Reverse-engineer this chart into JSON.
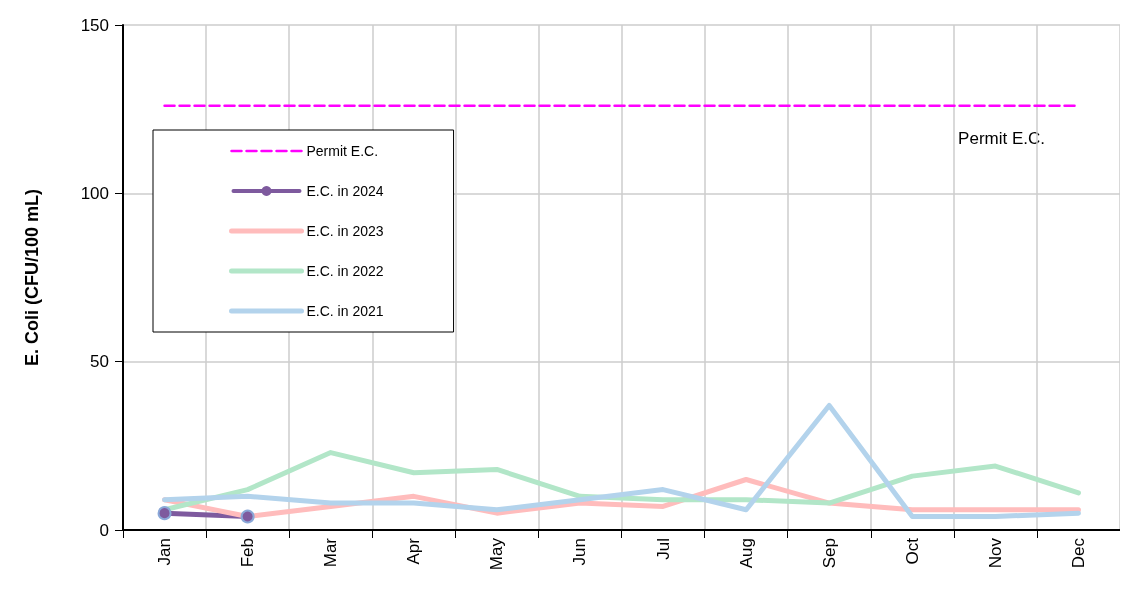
{
  "chart_data": {
    "type": "line",
    "ylabel": "E. Coli (CFU/100 mL)",
    "categories": [
      "Jan",
      "Feb",
      "Mar",
      "Apr",
      "May",
      "Jun",
      "Jul",
      "Aug",
      "Sep",
      "Oct",
      "Nov",
      "Dec"
    ],
    "series": [
      {
        "name": "Permit E.C.",
        "color": "#ff00ff",
        "line_style": "dashed",
        "marker": "none",
        "values": [
          126,
          126,
          126,
          126,
          126,
          126,
          126,
          126,
          126,
          126,
          126,
          126
        ]
      },
      {
        "name": "E.C. in 2024",
        "color": "#7e5a9e",
        "marker": "circle",
        "values": [
          5,
          4,
          null,
          null,
          null,
          null,
          null,
          null,
          null,
          null,
          null,
          null
        ]
      },
      {
        "name": "E.C. in 2023",
        "color": "#ffbcbc",
        "marker": "none",
        "values": [
          9,
          4,
          7,
          10,
          5,
          8,
          7,
          15,
          8,
          6,
          6,
          6
        ]
      },
      {
        "name": "E.C. in 2022",
        "color": "#b2e6c8",
        "marker": "none",
        "values": [
          6,
          12,
          23,
          17,
          18,
          10,
          9,
          9,
          8,
          16,
          19,
          11
        ]
      },
      {
        "name": "E.C. in 2021",
        "color": "#b3d3ec",
        "marker": "none",
        "values": [
          9,
          10,
          8,
          8,
          6,
          9,
          12,
          6,
          37,
          4,
          4,
          5
        ]
      }
    ],
    "ylim": [
      0,
      150
    ],
    "yticks": [
      0,
      50,
      100,
      150
    ],
    "grid": true,
    "legend": "top left",
    "line_style": "solid",
    "annotations": [
      "Permit E.C."
    ]
  }
}
